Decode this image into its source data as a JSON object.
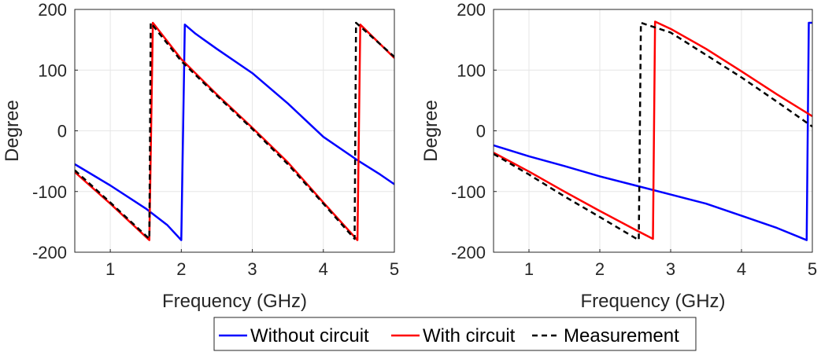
{
  "colors": {
    "without": "#0000ff",
    "with": "#ff0000",
    "measurement": "#000000",
    "grid": "#e6e6e6",
    "axis": "#262626"
  },
  "legend": {
    "items": [
      {
        "label": "Without circuit",
        "style": "solid",
        "color": "#0000ff"
      },
      {
        "label": "With circuit",
        "style": "solid",
        "color": "#ff0000"
      },
      {
        "label": "Measurement",
        "style": "dashed",
        "color": "#000000"
      }
    ]
  },
  "chart_data": [
    {
      "type": "line",
      "title": "",
      "xlabel": "Frequency (GHz)",
      "ylabel": "Degree",
      "xlim": [
        0.5,
        5
      ],
      "ylim": [
        -200,
        200
      ],
      "xticks": [
        1,
        2,
        3,
        4,
        5
      ],
      "yticks": [
        -200,
        -100,
        0,
        100,
        200
      ],
      "grid": true,
      "series": [
        {
          "name": "Without circuit",
          "color": "#0000ff",
          "dash": "solid",
          "x": [
            0.5,
            1.0,
            1.5,
            1.8,
            2.0,
            2.05,
            2.2,
            2.5,
            3.0,
            3.5,
            4.0,
            4.5,
            4.8,
            5.0
          ],
          "y": [
            -55,
            -90,
            -128,
            -155,
            -180,
            175,
            160,
            135,
            95,
            45,
            -10,
            -50,
            -72,
            -88
          ]
        },
        {
          "name": "With circuit",
          "color": "#ff0000",
          "dash": "solid",
          "x": [
            0.5,
            1.0,
            1.55,
            1.6,
            2.0,
            2.5,
            3.0,
            3.5,
            4.0,
            4.48,
            4.52,
            5.0
          ],
          "y": [
            -68,
            -120,
            -180,
            178,
            118,
            60,
            5,
            -52,
            -118,
            -180,
            175,
            120
          ]
        },
        {
          "name": "Measurement",
          "color": "#000000",
          "dash": "dashed",
          "x": [
            0.5,
            1.0,
            1.55,
            1.57,
            2.0,
            2.5,
            3.0,
            3.5,
            4.0,
            4.44,
            4.46,
            5.0
          ],
          "y": [
            -65,
            -118,
            -178,
            178,
            115,
            58,
            3,
            -55,
            -120,
            -178,
            178,
            122
          ]
        }
      ]
    },
    {
      "type": "line",
      "title": "",
      "xlabel": "Frequency (GHz)",
      "ylabel": "Degree",
      "xlim": [
        0.5,
        5
      ],
      "ylim": [
        -200,
        200
      ],
      "xticks": [
        1,
        2,
        3,
        4,
        5
      ],
      "yticks": [
        -200,
        -100,
        0,
        100,
        200
      ],
      "grid": true,
      "series": [
        {
          "name": "Without circuit",
          "color": "#0000ff",
          "dash": "solid",
          "x": [
            0.5,
            1.0,
            1.5,
            2.0,
            2.5,
            3.0,
            3.5,
            4.0,
            4.5,
            4.92,
            4.95,
            5.0
          ],
          "y": [
            -24,
            -42,
            -58,
            -75,
            -90,
            -105,
            -120,
            -140,
            -160,
            -180,
            178,
            178
          ]
        },
        {
          "name": "With circuit",
          "color": "#ff0000",
          "dash": "solid",
          "x": [
            0.5,
            1.0,
            1.5,
            2.0,
            2.5,
            2.75,
            2.78,
            3.0,
            3.5,
            4.0,
            4.5,
            5.0
          ],
          "y": [
            -36,
            -67,
            -100,
            -132,
            -163,
            -178,
            180,
            168,
            135,
            98,
            60,
            24
          ]
        },
        {
          "name": "Measurement",
          "color": "#000000",
          "dash": "dashed",
          "x": [
            0.5,
            1.0,
            1.5,
            2.0,
            2.55,
            2.58,
            3.0,
            3.5,
            4.0,
            4.5,
            5.0
          ],
          "y": [
            -38,
            -72,
            -108,
            -142,
            -180,
            178,
            162,
            125,
            88,
            48,
            7
          ]
        }
      ]
    }
  ]
}
